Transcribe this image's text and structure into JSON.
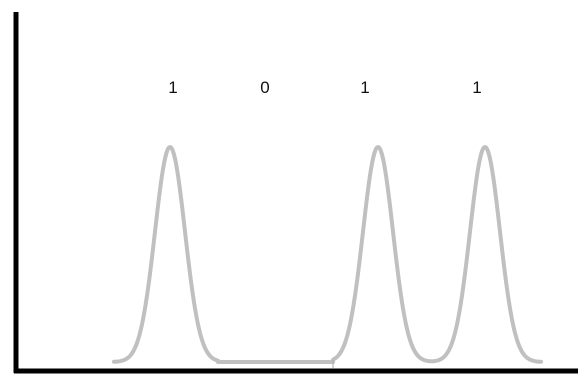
{
  "diagram": {
    "bits": [
      "1",
      "0",
      "1",
      "1"
    ],
    "colors": {
      "axis": "#000000",
      "pulse": "#c0c0c0",
      "label": "#111111",
      "background": "#ffffff"
    }
  }
}
